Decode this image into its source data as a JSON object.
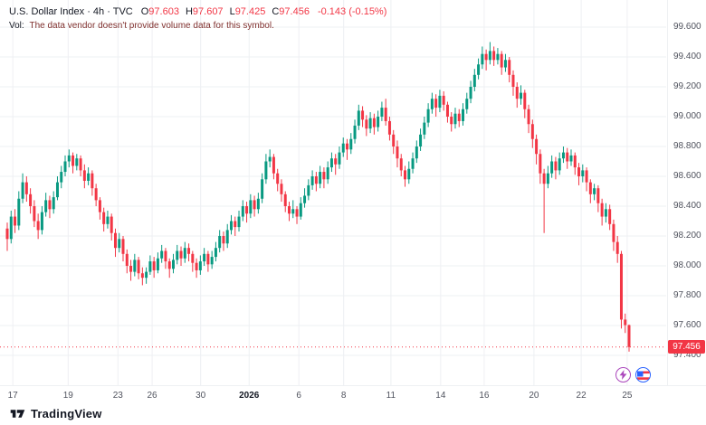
{
  "header": {
    "symbol_title": "U.S. Dollar Index · 4h · TVC",
    "o_label": "O",
    "o_value": "97.603",
    "h_label": "H",
    "h_value": "97.607",
    "l_label": "L",
    "l_value": "97.425",
    "c_label": "C",
    "c_value": "97.456",
    "change": "-0.143 (-0.15%)",
    "vol_label": "Vol:",
    "vol_message": "The data vendor doesn't provide volume data for this symbol."
  },
  "footer": {
    "logo_text": "TradingView"
  },
  "colors": {
    "up": "#089981",
    "down": "#f23645",
    "grid": "#eef0f3",
    "axis_text": "#50535e",
    "last_price_bg": "#f23645"
  },
  "overlay_buttons": [
    {
      "name": "boost",
      "icon": "lightning-icon"
    },
    {
      "name": "sentiment",
      "icon": "flag-icon"
    }
  ],
  "chart_data": {
    "type": "candlestick",
    "title": "U.S. Dollar Index, 4h, TVC",
    "last_price": "97.456",
    "y_axis": {
      "min": 97.4,
      "max": 99.6,
      "labels": [
        "99.600",
        "99.400",
        "99.200",
        "99.000",
        "98.800",
        "98.600",
        "98.400",
        "98.200",
        "98.000",
        "97.800",
        "97.600",
        "97.400"
      ]
    },
    "x_axis": {
      "labels": [
        {
          "text": "17",
          "pos": 0.009
        },
        {
          "text": "19",
          "pos": 0.098
        },
        {
          "text": "23",
          "pos": 0.178
        },
        {
          "text": "26",
          "pos": 0.233
        },
        {
          "text": "30",
          "pos": 0.311
        },
        {
          "text": "2026",
          "pos": 0.389,
          "bold": true
        },
        {
          "text": "6",
          "pos": 0.469
        },
        {
          "text": "8",
          "pos": 0.541
        },
        {
          "text": "11",
          "pos": 0.617
        },
        {
          "text": "14",
          "pos": 0.697
        },
        {
          "text": "16",
          "pos": 0.767
        },
        {
          "text": "20",
          "pos": 0.847
        },
        {
          "text": "22",
          "pos": 0.923
        },
        {
          "text": "25",
          "pos": 0.997
        }
      ]
    },
    "candles": [
      [
        98.25,
        98.29,
        98.1,
        98.18
      ],
      [
        98.18,
        98.37,
        98.15,
        98.33
      ],
      [
        98.33,
        98.38,
        98.22,
        98.27
      ],
      [
        98.27,
        98.5,
        98.24,
        98.45
      ],
      [
        98.45,
        98.62,
        98.42,
        98.56
      ],
      [
        98.56,
        98.6,
        98.43,
        98.48
      ],
      [
        98.48,
        98.52,
        98.35,
        98.4
      ],
      [
        98.4,
        98.44,
        98.26,
        98.3
      ],
      [
        98.3,
        98.35,
        98.18,
        98.24
      ],
      [
        98.24,
        98.4,
        98.21,
        98.36
      ],
      [
        98.36,
        98.49,
        98.33,
        98.44
      ],
      [
        98.44,
        98.47,
        98.32,
        98.38
      ],
      [
        98.38,
        98.5,
        98.35,
        98.46
      ],
      [
        98.46,
        98.6,
        98.44,
        98.56
      ],
      [
        98.56,
        98.67,
        98.52,
        98.63
      ],
      [
        98.63,
        98.74,
        98.6,
        98.7
      ],
      [
        98.7,
        98.78,
        98.66,
        98.74
      ],
      [
        98.74,
        98.76,
        98.62,
        98.67
      ],
      [
        98.67,
        98.75,
        98.64,
        98.72
      ],
      [
        98.72,
        98.74,
        98.6,
        98.64
      ],
      [
        98.64,
        98.68,
        98.52,
        98.57
      ],
      [
        98.57,
        98.66,
        98.54,
        98.62
      ],
      [
        98.62,
        98.64,
        98.47,
        98.52
      ],
      [
        98.52,
        98.55,
        98.4,
        98.44
      ],
      [
        98.44,
        98.46,
        98.31,
        98.36
      ],
      [
        98.36,
        98.39,
        98.23,
        98.28
      ],
      [
        98.28,
        98.37,
        98.25,
        98.33
      ],
      [
        98.33,
        98.35,
        98.17,
        98.22
      ],
      [
        98.22,
        98.25,
        98.06,
        98.12
      ],
      [
        98.12,
        98.22,
        98.09,
        98.18
      ],
      [
        98.18,
        98.2,
        98.03,
        98.08
      ],
      [
        98.08,
        98.11,
        97.95,
        98.0
      ],
      [
        98.0,
        98.04,
        97.9,
        97.96
      ],
      [
        97.96,
        98.08,
        97.93,
        98.04
      ],
      [
        98.04,
        98.06,
        97.91,
        97.95
      ],
      [
        97.95,
        97.99,
        97.87,
        97.92
      ],
      [
        97.92,
        97.99,
        97.88,
        97.96
      ],
      [
        97.96,
        98.07,
        97.94,
        98.03
      ],
      [
        98.03,
        98.06,
        97.92,
        97.97
      ],
      [
        97.97,
        98.09,
        97.95,
        98.05
      ],
      [
        98.05,
        98.14,
        98.02,
        98.1
      ],
      [
        98.1,
        98.12,
        97.98,
        98.03
      ],
      [
        98.03,
        98.05,
        97.92,
        97.98
      ],
      [
        97.98,
        98.08,
        97.95,
        98.04
      ],
      [
        98.04,
        98.14,
        98.01,
        98.1
      ],
      [
        98.1,
        98.13,
        98.0,
        98.05
      ],
      [
        98.05,
        98.16,
        98.02,
        98.12
      ],
      [
        98.12,
        98.15,
        98.03,
        98.08
      ],
      [
        98.08,
        98.1,
        97.96,
        98.02
      ],
      [
        98.02,
        98.05,
        97.92,
        97.97
      ],
      [
        97.97,
        98.07,
        97.94,
        98.03
      ],
      [
        98.03,
        98.12,
        98.0,
        98.08
      ],
      [
        98.08,
        98.1,
        97.96,
        98.01
      ],
      [
        98.01,
        98.1,
        97.98,
        98.06
      ],
      [
        98.06,
        98.16,
        98.03,
        98.12
      ],
      [
        98.12,
        98.24,
        98.09,
        98.2
      ],
      [
        98.2,
        98.23,
        98.1,
        98.15
      ],
      [
        98.15,
        98.28,
        98.12,
        98.24
      ],
      [
        98.24,
        98.34,
        98.21,
        98.3
      ],
      [
        98.3,
        98.33,
        98.2,
        98.26
      ],
      [
        98.26,
        98.37,
        98.23,
        98.33
      ],
      [
        98.33,
        98.44,
        98.3,
        98.4
      ],
      [
        98.4,
        98.43,
        98.29,
        98.35
      ],
      [
        98.35,
        98.48,
        98.32,
        98.44
      ],
      [
        98.44,
        98.47,
        98.33,
        98.38
      ],
      [
        98.38,
        98.49,
        98.35,
        98.45
      ],
      [
        98.45,
        98.62,
        98.42,
        98.58
      ],
      [
        98.58,
        98.75,
        98.55,
        98.7
      ],
      [
        98.7,
        98.78,
        98.66,
        98.73
      ],
      [
        98.73,
        98.75,
        98.58,
        98.62
      ],
      [
        98.62,
        98.65,
        98.5,
        98.55
      ],
      [
        98.55,
        98.58,
        98.43,
        98.48
      ],
      [
        98.48,
        98.5,
        98.36,
        98.4
      ],
      [
        98.4,
        98.43,
        98.3,
        98.35
      ],
      [
        98.35,
        98.44,
        98.32,
        98.38
      ],
      [
        98.38,
        98.4,
        98.28,
        98.33
      ],
      [
        98.33,
        98.46,
        98.31,
        98.42
      ],
      [
        98.42,
        98.52,
        98.39,
        98.47
      ],
      [
        98.47,
        98.58,
        98.44,
        98.54
      ],
      [
        98.54,
        98.64,
        98.51,
        98.6
      ],
      [
        98.6,
        98.63,
        98.5,
        98.55
      ],
      [
        98.55,
        98.67,
        98.52,
        98.63
      ],
      [
        98.63,
        98.66,
        98.52,
        98.58
      ],
      [
        98.58,
        98.7,
        98.55,
        98.66
      ],
      [
        98.66,
        98.76,
        98.63,
        98.72
      ],
      [
        98.72,
        98.75,
        98.61,
        98.68
      ],
      [
        98.68,
        98.8,
        98.65,
        98.76
      ],
      [
        98.76,
        98.86,
        98.73,
        98.82
      ],
      [
        98.82,
        98.85,
        98.71,
        98.78
      ],
      [
        98.78,
        98.89,
        98.75,
        98.85
      ],
      [
        98.85,
        98.98,
        98.82,
        98.94
      ],
      [
        98.94,
        99.08,
        98.91,
        99.04
      ],
      [
        99.04,
        99.07,
        98.93,
        98.98
      ],
      [
        98.98,
        99.01,
        98.87,
        98.92
      ],
      [
        98.92,
        99.03,
        98.89,
        98.99
      ],
      [
        98.99,
        99.02,
        98.88,
        98.93
      ],
      [
        98.93,
        99.04,
        98.9,
        99.0
      ],
      [
        99.0,
        99.1,
        98.97,
        99.06
      ],
      [
        99.06,
        99.12,
        98.94,
        98.97
      ],
      [
        98.97,
        99.0,
        98.84,
        98.88
      ],
      [
        98.88,
        98.91,
        98.75,
        98.8
      ],
      [
        98.8,
        98.84,
        98.66,
        98.72
      ],
      [
        98.72,
        98.75,
        98.6,
        98.64
      ],
      [
        98.64,
        98.67,
        98.53,
        98.58
      ],
      [
        98.58,
        98.7,
        98.55,
        98.65
      ],
      [
        98.65,
        98.76,
        98.62,
        98.72
      ],
      [
        98.72,
        98.84,
        98.69,
        98.8
      ],
      [
        98.8,
        98.92,
        98.77,
        98.88
      ],
      [
        98.88,
        99.0,
        98.85,
        98.96
      ],
      [
        98.96,
        99.09,
        98.93,
        99.05
      ],
      [
        99.05,
        99.16,
        99.02,
        99.12
      ],
      [
        99.12,
        99.15,
        99.0,
        99.06
      ],
      [
        99.06,
        99.18,
        99.03,
        99.14
      ],
      [
        99.14,
        99.17,
        99.04,
        99.08
      ],
      [
        99.08,
        99.1,
        98.96,
        99.0
      ],
      [
        99.0,
        99.03,
        98.9,
        98.95
      ],
      [
        98.95,
        99.06,
        98.92,
        99.02
      ],
      [
        99.02,
        99.05,
        98.93,
        98.97
      ],
      [
        98.97,
        99.09,
        98.94,
        99.05
      ],
      [
        99.05,
        99.16,
        99.02,
        99.12
      ],
      [
        99.12,
        99.24,
        99.09,
        99.2
      ],
      [
        99.2,
        99.32,
        99.17,
        99.28
      ],
      [
        99.28,
        99.39,
        99.25,
        99.35
      ],
      [
        99.35,
        99.47,
        99.32,
        99.42
      ],
      [
        99.42,
        99.45,
        99.31,
        99.38
      ],
      [
        99.38,
        99.5,
        99.35,
        99.44
      ],
      [
        99.44,
        99.47,
        99.34,
        99.38
      ],
      [
        99.38,
        99.46,
        99.35,
        99.42
      ],
      [
        99.42,
        99.44,
        99.28,
        99.33
      ],
      [
        99.33,
        99.42,
        99.3,
        99.38
      ],
      [
        99.38,
        99.4,
        99.23,
        99.28
      ],
      [
        99.28,
        99.31,
        99.14,
        99.2
      ],
      [
        99.2,
        99.23,
        99.06,
        99.12
      ],
      [
        99.12,
        99.21,
        99.08,
        99.16
      ],
      [
        99.16,
        99.18,
        98.99,
        99.05
      ],
      [
        99.05,
        99.08,
        98.89,
        98.95
      ],
      [
        98.95,
        98.98,
        98.79,
        98.85
      ],
      [
        98.85,
        98.88,
        98.68,
        98.75
      ],
      [
        98.75,
        98.78,
        98.55,
        98.62
      ],
      [
        98.62,
        98.65,
        98.22,
        98.55
      ],
      [
        98.55,
        98.67,
        98.52,
        98.62
      ],
      [
        98.62,
        98.74,
        98.59,
        98.7
      ],
      [
        98.7,
        98.73,
        98.58,
        98.64
      ],
      [
        98.64,
        98.76,
        98.61,
        98.72
      ],
      [
        98.72,
        98.8,
        98.69,
        98.76
      ],
      [
        98.76,
        98.79,
        98.65,
        98.7
      ],
      [
        98.7,
        98.78,
        98.67,
        98.74
      ],
      [
        98.74,
        98.76,
        98.61,
        98.66
      ],
      [
        98.66,
        98.69,
        98.54,
        98.6
      ],
      [
        98.6,
        98.68,
        98.56,
        98.64
      ],
      [
        98.64,
        98.66,
        98.5,
        98.56
      ],
      [
        98.56,
        98.58,
        98.42,
        98.48
      ],
      [
        98.48,
        98.55,
        98.44,
        98.52
      ],
      [
        98.52,
        98.54,
        98.36,
        98.42
      ],
      [
        98.42,
        98.45,
        98.27,
        98.33
      ],
      [
        98.33,
        98.42,
        98.29,
        98.38
      ],
      [
        98.38,
        98.41,
        98.24,
        98.28
      ],
      [
        98.28,
        98.31,
        98.1,
        98.16
      ],
      [
        98.16,
        98.2,
        98.02,
        98.08
      ],
      [
        98.08,
        98.1,
        97.58,
        97.64
      ],
      [
        97.64,
        97.68,
        97.55,
        97.603
      ],
      [
        97.603,
        97.607,
        97.425,
        97.456
      ]
    ]
  }
}
